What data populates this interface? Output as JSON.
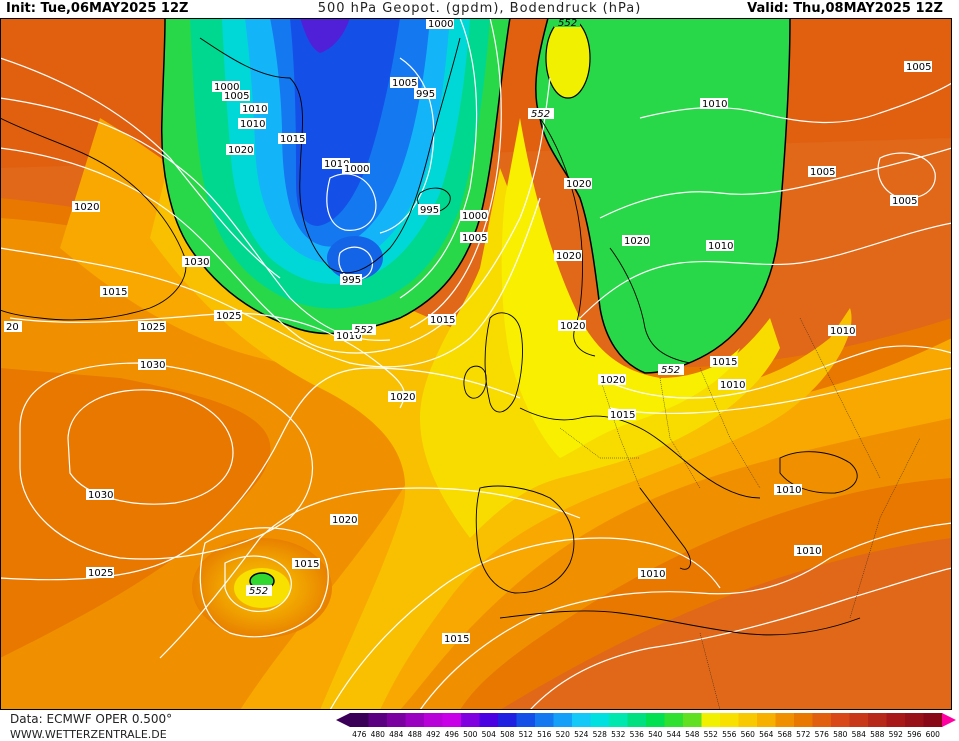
{
  "header": {
    "init": "Init: Tue,06MAY2025 12Z",
    "title": "500 hPa Geopot. (gpdm), Bodendruck (hPa)",
    "valid": "Valid: Thu,08MAY2025 12Z"
  },
  "footer": {
    "source": "Data: ECMWF OPER 0.500°",
    "website": "WWW.WETTERZENTRALE.DE"
  },
  "colorbar": {
    "ticks": [
      "476",
      "480",
      "484",
      "488",
      "492",
      "496",
      "500",
      "504",
      "508",
      "512",
      "516",
      "520",
      "524",
      "528",
      "532",
      "536",
      "540",
      "544",
      "548",
      "552",
      "556",
      "560",
      "564",
      "568",
      "572",
      "576",
      "580",
      "584",
      "588",
      "592",
      "596",
      "600"
    ],
    "colors": [
      "#3a0058",
      "#5a0080",
      "#7a00a0",
      "#9a00c0",
      "#b800d8",
      "#c800e8",
      "#8000e0",
      "#4a00e0",
      "#2020e0",
      "#1450e8",
      "#1478f0",
      "#14a0f8",
      "#14c8f8",
      "#00e0e0",
      "#00e8b0",
      "#00e080",
      "#00e050",
      "#30e030",
      "#60e020",
      "#f0f000",
      "#f8e000",
      "#f8c800",
      "#f8b000",
      "#f09000",
      "#e87800",
      "#e06010",
      "#d84818",
      "#c83818",
      "#b82818",
      "#a81818",
      "#981018",
      "#880818"
    ],
    "arrow_left_color": "#3a0058",
    "arrow_right_color": "#ff00a0"
  },
  "map_labels": {
    "pressure": [
      {
        "text": "1000"
      },
      {
        "text": "1005"
      },
      {
        "text": "1010"
      },
      {
        "text": "1000"
      },
      {
        "text": "1005"
      },
      {
        "text": "995"
      },
      {
        "text": "1015"
      },
      {
        "text": "1020"
      },
      {
        "text": "1010"
      },
      {
        "text": "1000"
      },
      {
        "text": "995"
      },
      {
        "text": "1005"
      },
      {
        "text": "1000"
      },
      {
        "text": "995"
      },
      {
        "text": "1020"
      },
      {
        "text": "1030"
      },
      {
        "text": "1015"
      },
      {
        "text": "1025"
      },
      {
        "text": "1025"
      },
      {
        "text": "1010"
      },
      {
        "text": "1015"
      },
      {
        "text": "1020"
      },
      {
        "text": "1030"
      },
      {
        "text": "1030"
      },
      {
        "text": "1025"
      },
      {
        "text": "1020"
      },
      {
        "text": "1015"
      },
      {
        "text": "1015"
      },
      {
        "text": "1020"
      },
      {
        "text": "1010"
      },
      {
        "text": "1020"
      },
      {
        "text": "1020"
      },
      {
        "text": "1020"
      },
      {
        "text": "1020"
      },
      {
        "text": "1015"
      },
      {
        "text": "1015"
      },
      {
        "text": "1010"
      },
      {
        "text": "1010"
      },
      {
        "text": "1010"
      },
      {
        "text": "1010"
      },
      {
        "text": "1010"
      },
      {
        "text": "1005"
      },
      {
        "text": "1005"
      },
      {
        "text": "1005"
      },
      {
        "text": "1010"
      },
      {
        "text": "1010"
      },
      {
        "text": "20"
      }
    ],
    "geopotential": [
      {
        "text": "552"
      },
      {
        "text": "552"
      },
      {
        "text": "552"
      },
      {
        "text": "552"
      },
      {
        "text": "552"
      }
    ]
  }
}
